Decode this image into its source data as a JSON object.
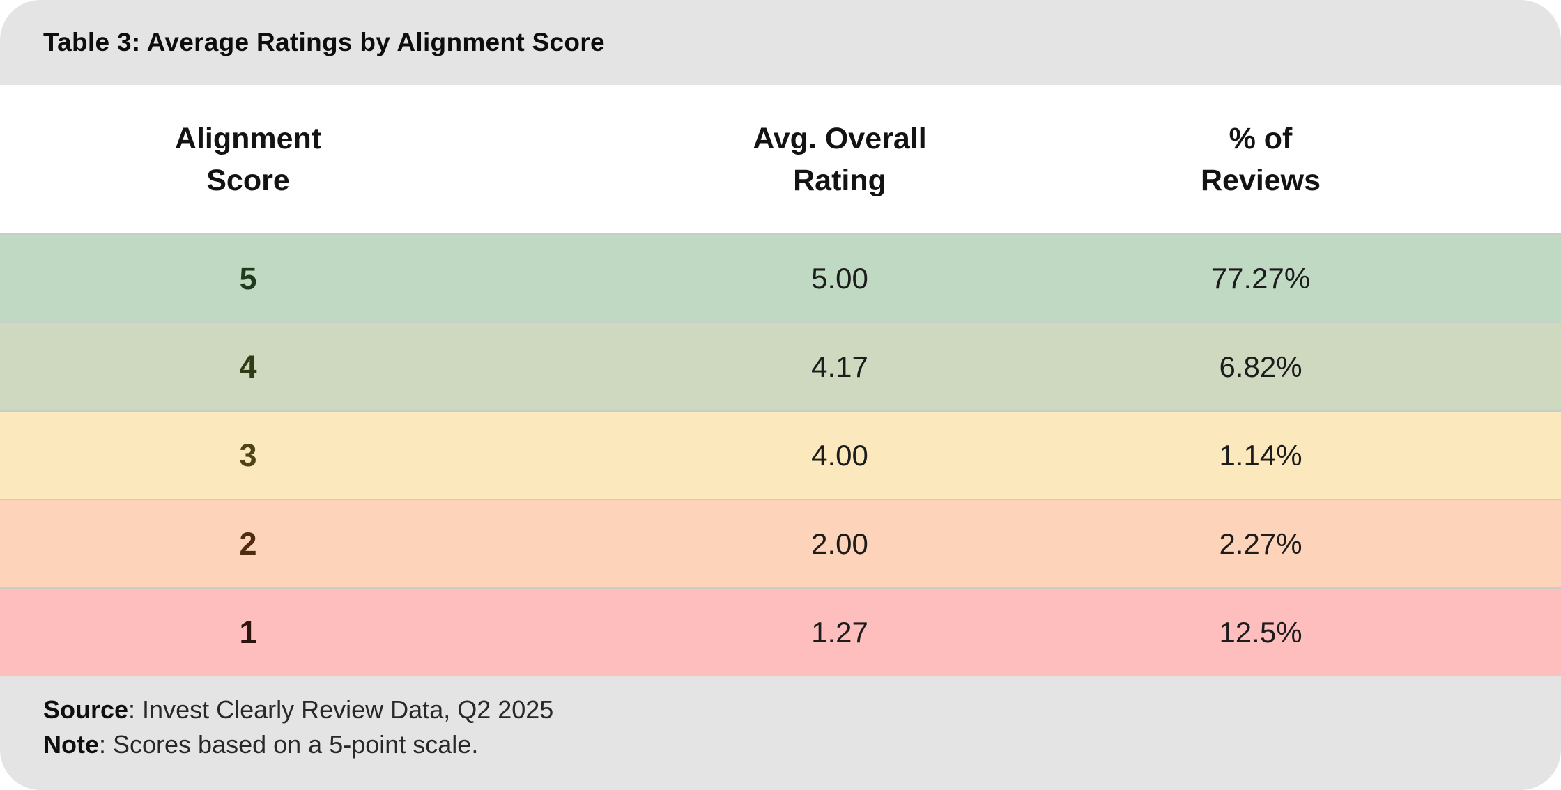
{
  "title": "Table 3: Average Ratings by Alignment Score",
  "colors": {
    "band_bg": "#e4e4e4",
    "row_divider": "#c9cdc8",
    "header_text": "#131313",
    "value_text": "#1c1c1c"
  },
  "table": {
    "headers": [
      {
        "line1": "Alignment",
        "line2": "Score"
      },
      {
        "line1": "Avg. Overall",
        "line2": "Rating"
      },
      {
        "line1": "% of",
        "line2": "Reviews"
      }
    ],
    "rows": [
      {
        "score": "5",
        "rating": "5.00",
        "pct": "77.27%",
        "bg": "#c0d9c2",
        "score_color": "#1e3a1c"
      },
      {
        "score": "4",
        "rating": "4.17",
        "pct": "6.82%",
        "bg": "#cfd9c0",
        "score_color": "#2d3c14"
      },
      {
        "score": "3",
        "rating": "4.00",
        "pct": "1.14%",
        "bg": "#fbe8bc",
        "score_color": "#4e4314"
      },
      {
        "score": "2",
        "rating": "2.00",
        "pct": "2.27%",
        "bg": "#fdd4b9",
        "score_color": "#4e2c11"
      },
      {
        "score": "1",
        "rating": "1.27",
        "pct": "12.5%",
        "bg": "#ffbebe",
        "score_color": "#2d140e"
      }
    ]
  },
  "footer": {
    "source_label": "Source",
    "source_text": ": Invest Clearly Review Data, Q2 2025",
    "note_label": "Note",
    "note_text": ": Scores based on a 5-point scale."
  },
  "chart_data": {
    "type": "table",
    "title": "Table 3: Average Ratings by Alignment Score",
    "columns": [
      "Alignment Score",
      "Avg. Overall Rating",
      "% of Reviews"
    ],
    "rows": [
      [
        5,
        5.0,
        "77.27%"
      ],
      [
        4,
        4.17,
        "6.82%"
      ],
      [
        3,
        4.0,
        "1.14%"
      ],
      [
        2,
        2.0,
        "2.27%"
      ],
      [
        1,
        1.27,
        "12.5%"
      ]
    ],
    "row_colors": [
      "#c0d9c2",
      "#cfd9c0",
      "#fbe8bc",
      "#fdd4b9",
      "#ffbebe"
    ],
    "source": "Invest Clearly Review Data, Q2 2025",
    "note": "Scores based on a 5-point scale."
  }
}
